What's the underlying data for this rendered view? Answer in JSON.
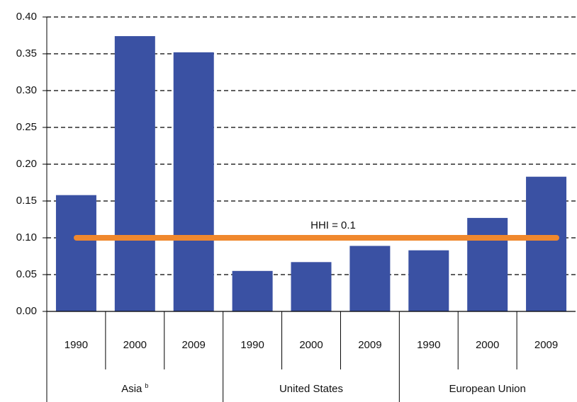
{
  "chart_data": {
    "type": "bar",
    "color": "#3a51a3",
    "groups": [
      {
        "name": "Asia",
        "footnote": "b",
        "categories": [
          "1990",
          "2000",
          "2009"
        ],
        "values": [
          0.158,
          0.374,
          0.352
        ]
      },
      {
        "name": "United States",
        "categories": [
          "1990",
          "2000",
          "2009"
        ],
        "values": [
          0.055,
          0.067,
          0.089
        ]
      },
      {
        "name": "European Union",
        "categories": [
          "1990",
          "2000",
          "2009"
        ],
        "values": [
          0.083,
          0.127,
          0.183
        ]
      }
    ],
    "ylim": [
      0,
      0.4
    ],
    "yticks": [
      {
        "value": 0,
        "label": "0.00"
      },
      {
        "value": 0.05,
        "label": "0.05"
      },
      {
        "value": 0.1,
        "label": "0.10"
      },
      {
        "value": 0.15,
        "label": "0.15"
      },
      {
        "value": 0.2,
        "label": "0.20"
      },
      {
        "value": 0.25,
        "label": "0.25"
      },
      {
        "value": 0.3,
        "label": "0.30"
      },
      {
        "value": 0.35,
        "label": "0.35"
      },
      {
        "value": 0.4,
        "label": "0.40"
      }
    ],
    "grid": true,
    "reference_line": {
      "value": 0.1,
      "label": "HHI = 0.1",
      "color": "#f0882d"
    }
  }
}
